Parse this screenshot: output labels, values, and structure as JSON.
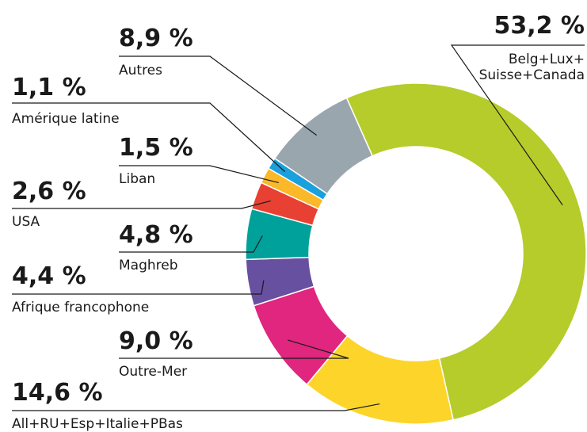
{
  "chart_data": {
    "type": "donut",
    "categories": [
      "Belg+Lux+\nSuisse+Canada",
      "All+RU+Esp+Italie+PBas",
      "Outre-Mer",
      "Afrique francophone",
      "Maghreb",
      "USA",
      "Liban",
      "Amérique latine",
      "Autres"
    ],
    "values": [
      53.2,
      14.6,
      9.0,
      4.4,
      4.8,
      2.6,
      1.5,
      1.1,
      8.9
    ],
    "value_labels": [
      "53,2 %",
      "14,6 %",
      "9,0 %",
      "4,4 %",
      "4,8 %",
      "2,6 %",
      "1,5 %",
      "1,1 %",
      "8,9 %"
    ],
    "colors": [
      "#b5cc2a",
      "#fdd52a",
      "#e0267e",
      "#6750a0",
      "#00a19a",
      "#e84134",
      "#fbb829",
      "#1aa0dc",
      "#9aa6ae"
    ]
  }
}
